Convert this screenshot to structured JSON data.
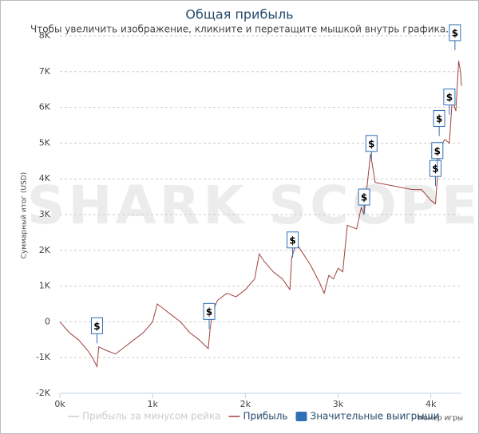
{
  "chart_data": {
    "type": "line",
    "title": "Общая прибыль",
    "subtitle": "Чтобы увеличить изображение, кликните и перетащите мышкой внутрь графика.",
    "watermark": "SHARK SCOPE",
    "y_label": "Суммарный итог (USD)",
    "x_label": "Номер игры",
    "xlim": [
      0,
      4330
    ],
    "ylim": [
      -2000,
      8000
    ],
    "xticks": [
      {
        "value": 0,
        "label": "0k"
      },
      {
        "value": 1000,
        "label": "1k"
      },
      {
        "value": 2000,
        "label": "2k"
      },
      {
        "value": 3000,
        "label": "3k"
      },
      {
        "value": 4000,
        "label": "4k"
      }
    ],
    "yticks": [
      {
        "value": -2000,
        "label": "-2K"
      },
      {
        "value": -1000,
        "label": "-1K"
      },
      {
        "value": 0,
        "label": "0"
      },
      {
        "value": 1000,
        "label": "1K"
      },
      {
        "value": 2000,
        "label": "2K"
      },
      {
        "value": 3000,
        "label": "3K"
      },
      {
        "value": 4000,
        "label": "4K"
      },
      {
        "value": 5000,
        "label": "5K"
      },
      {
        "value": 6000,
        "label": "6K"
      },
      {
        "value": 7000,
        "label": "7K"
      },
      {
        "value": 8000,
        "label": "8K"
      }
    ],
    "grid": true,
    "x": [
      0,
      100,
      200,
      300,
      350,
      400,
      420,
      500,
      600,
      700,
      800,
      900,
      1000,
      1050,
      1100,
      1200,
      1300,
      1400,
      1500,
      1600,
      1620,
      1650,
      1700,
      1800,
      1900,
      2000,
      2100,
      2150,
      2200,
      2300,
      2400,
      2480,
      2500,
      2550,
      2600,
      2700,
      2800,
      2850,
      2900,
      2950,
      3000,
      3050,
      3100,
      3200,
      3250,
      3280,
      3300,
      3350,
      3400,
      3600,
      3800,
      3900,
      4000,
      4050,
      4070,
      4100,
      4150,
      4200,
      4230,
      4270,
      4300,
      4320,
      4330
    ],
    "series": [
      {
        "name": "Прибыль за минусом рейка",
        "color": "#cccccc",
        "visible": false
      },
      {
        "name": "Прибыль",
        "color": "#a0403f",
        "values": [
          0,
          -300,
          -500,
          -800,
          -1000,
          -1250,
          -700,
          -800,
          -900,
          -700,
          -500,
          -300,
          0,
          500,
          400,
          200,
          0,
          -300,
          -500,
          -750,
          -200,
          300,
          600,
          800,
          700,
          900,
          1200,
          1900,
          1700,
          1400,
          1200,
          900,
          1800,
          2200,
          2000,
          1600,
          1100,
          800,
          1300,
          1200,
          1500,
          1400,
          2700,
          2600,
          3200,
          3000,
          3500,
          4700,
          3900,
          3800,
          3700,
          3700,
          3400,
          3300,
          4000,
          4900,
          5100,
          5000,
          6200,
          5900,
          7300,
          7000,
          6600
        ]
      },
      {
        "name": "Значительные выигрыши",
        "color": "#2f6fb5",
        "type": "flags",
        "label": "$",
        "x": [
          400,
          1610,
          2510,
          3280,
          3360,
          4050,
          4070,
          4090,
          4200,
          4260
        ],
        "values": [
          -600,
          -200,
          1800,
          3000,
          4500,
          3800,
          4300,
          5200,
          5800,
          7600
        ]
      }
    ]
  }
}
